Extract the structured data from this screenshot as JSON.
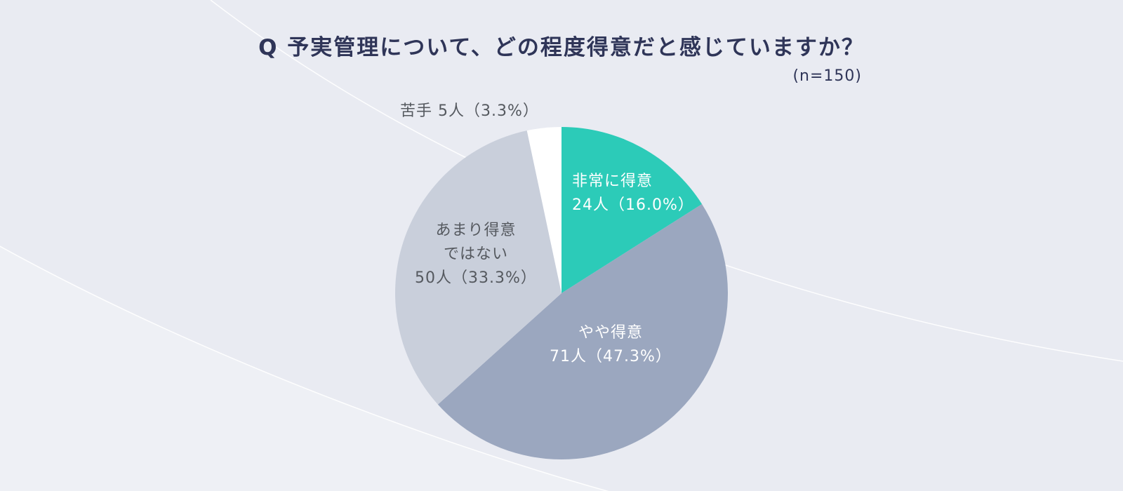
{
  "chart_data": {
    "type": "pie",
    "title": "Q 予実管理について、どの程度得意だと感じていますか？",
    "subtitle": "(n=150)",
    "start_angle": "top",
    "direction": "clockwise",
    "slices": [
      {
        "label": "非常に得意",
        "count_label": "24人（16.0%）",
        "value": 24,
        "percent": 16.0,
        "color": "#2ccbb8",
        "text_color": "#ffffff"
      },
      {
        "label": "やや得意",
        "count_label": "71人（47.3%）",
        "value": 71,
        "percent": 47.3,
        "color": "#9ba7bf",
        "text_color": "#ffffff"
      },
      {
        "label": "あまり得意\nではない",
        "count_label": "50人（33.3%）",
        "value": 50,
        "percent": 33.3,
        "color": "#c9cfdb",
        "text_color": "#55595f"
      },
      {
        "label": "苦手",
        "count_label": "5人（3.3%）",
        "value": 5,
        "percent": 3.3,
        "color": "#ffffff",
        "text_color": "#55595f"
      }
    ]
  }
}
